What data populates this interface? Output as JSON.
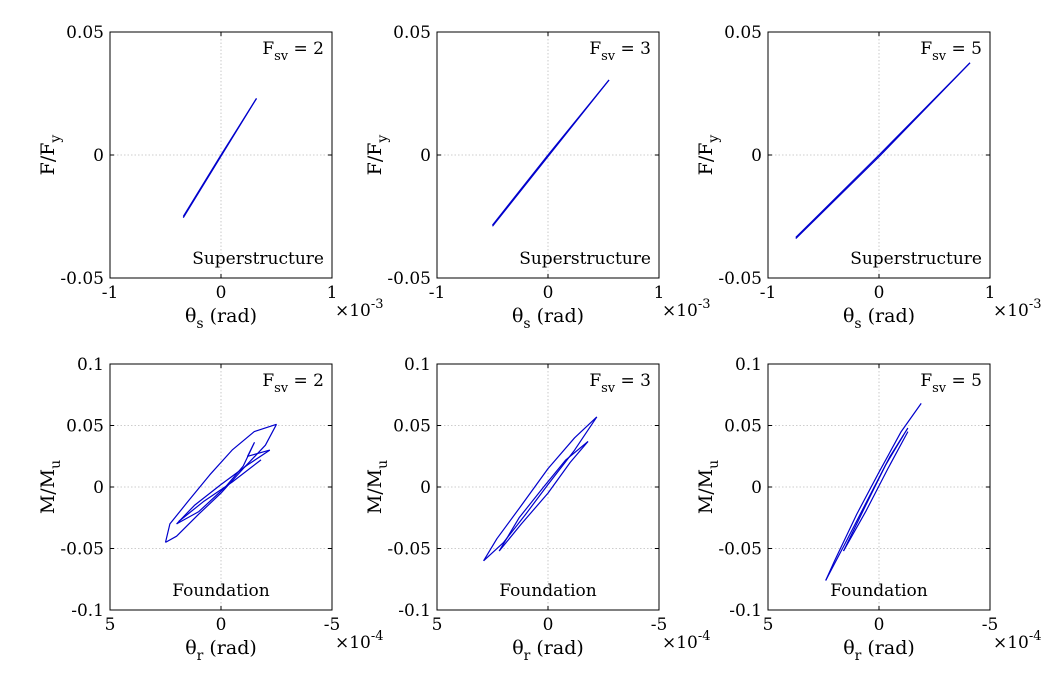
{
  "chart_data": [
    {
      "type": "line",
      "panel": "top-left",
      "xlabel": {
        "sym": "θ",
        "sub": "s",
        "unit": " (rad)"
      },
      "ylabel": {
        "main": "F/F",
        "sub": "y"
      },
      "xlim": [
        -1,
        1
      ],
      "ylim": [
        -0.05,
        0.05
      ],
      "xticks": [
        "-1",
        "0",
        "1"
      ],
      "yticks": [
        "-0.05",
        "0",
        "0.05"
      ],
      "x_multiplier": {
        "base": "×10",
        "exp": "-3"
      },
      "fsv": {
        "label": "F",
        "sub": "sv",
        "value": " = 2"
      },
      "annotation": "Superstructure",
      "grid": true,
      "series": [
        {
          "color": "#0000cc",
          "loops": [
            {
              "x": [
                -0.34,
                0.0,
                0.32
              ],
              "y": [
                -0.025,
                0.0,
                0.023
              ]
            },
            {
              "x": [
                0.32,
                0.0,
                -0.34
              ],
              "y": [
                0.023,
                -0.0005,
                -0.0255
              ]
            }
          ]
        }
      ]
    },
    {
      "type": "line",
      "panel": "top-middle",
      "xlabel": {
        "sym": "θ",
        "sub": "s",
        "unit": " (rad)"
      },
      "ylabel": {
        "main": "F/F",
        "sub": "y"
      },
      "xlim": [
        -1,
        1
      ],
      "ylim": [
        -0.05,
        0.05
      ],
      "xticks": [
        "-1",
        "0",
        "1"
      ],
      "yticks": [
        "-0.05",
        "0",
        "0.05"
      ],
      "x_multiplier": {
        "base": "×10",
        "exp": "-3"
      },
      "fsv": {
        "label": "F",
        "sub": "sv",
        "value": " = 3"
      },
      "annotation": "Superstructure",
      "grid": true,
      "series": [
        {
          "color": "#0000cc",
          "loops": [
            {
              "x": [
                -0.5,
                0.0,
                0.55
              ],
              "y": [
                -0.0285,
                0.0,
                0.0305
              ]
            },
            {
              "x": [
                0.55,
                0.0,
                -0.5
              ],
              "y": [
                0.0305,
                -0.0006,
                -0.029
              ]
            }
          ]
        }
      ]
    },
    {
      "type": "line",
      "panel": "top-right",
      "xlabel": {
        "sym": "θ",
        "sub": "s",
        "unit": " (rad)"
      },
      "ylabel": {
        "main": "F/F",
        "sub": "y"
      },
      "xlim": [
        -1,
        1
      ],
      "ylim": [
        -0.05,
        0.05
      ],
      "xticks": [
        "-1",
        "0",
        "1"
      ],
      "yticks": [
        "-0.05",
        "0",
        "0.05"
      ],
      "x_multiplier": {
        "base": "×10",
        "exp": "-3"
      },
      "fsv": {
        "label": "F",
        "sub": "sv",
        "value": " = 5"
      },
      "annotation": "Superstructure",
      "grid": true,
      "series": [
        {
          "color": "#0000cc",
          "loops": [
            {
              "x": [
                -0.75,
                0.0,
                0.82
              ],
              "y": [
                -0.0335,
                0.0,
                0.0375
              ]
            },
            {
              "x": [
                0.82,
                0.0,
                -0.75
              ],
              "y": [
                0.0375,
                -0.0007,
                -0.034
              ]
            }
          ]
        }
      ]
    },
    {
      "type": "line",
      "panel": "bottom-left",
      "xlabel": {
        "sym": "θ",
        "sub": "r",
        "unit": " (rad)"
      },
      "ylabel": {
        "main": "M/M",
        "sub": "u"
      },
      "xlim": [
        5,
        -5
      ],
      "ylim": [
        -0.1,
        0.1
      ],
      "xticks": [
        "5",
        "0",
        "-5"
      ],
      "yticks": [
        "-0.1",
        "-0.05",
        "0",
        "0.05",
        "0.1"
      ],
      "x_multiplier": {
        "base": "×10",
        "exp": "-4"
      },
      "fsv": {
        "label": "F",
        "sub": "sv",
        "value": " = 2"
      },
      "annotation": "Foundation",
      "grid": true,
      "series": [
        {
          "color": "#0000cc",
          "loops": [
            {
              "x": [
                -2.5,
                -1.5,
                -0.5,
                0.5,
                1.5,
                2.3,
                2.5
              ],
              "y": [
                0.051,
                0.045,
                0.03,
                0.01,
                -0.012,
                -0.03,
                -0.045
              ]
            },
            {
              "x": [
                2.5,
                2.0,
                1.0,
                0.0,
                -1.0,
                -2.0,
                -2.5
              ],
              "y": [
                -0.045,
                -0.04,
                -0.022,
                -0.005,
                0.015,
                0.034,
                0.051
              ]
            },
            {
              "x": [
                -2.2,
                -1.2,
                0.0,
                1.2,
                2.0
              ],
              "y": [
                0.03,
                0.018,
                0.002,
                -0.015,
                -0.03
              ]
            },
            {
              "x": [
                2.0,
                1.0,
                -0.2,
                -1.0,
                -1.5,
                -1.2,
                -2.2
              ],
              "y": [
                -0.03,
                -0.02,
                0.0,
                0.017,
                0.036,
                0.025,
                0.03
              ]
            },
            {
              "x": [
                1.9,
                0.8,
                -0.5,
                -1.8
              ],
              "y": [
                -0.028,
                -0.012,
                0.004,
                0.022
              ]
            }
          ]
        }
      ]
    },
    {
      "type": "line",
      "panel": "bottom-middle",
      "xlabel": {
        "sym": "θ",
        "sub": "r",
        "unit": " (rad)"
      },
      "ylabel": {
        "main": "M/M",
        "sub": "u"
      },
      "xlim": [
        5,
        -5
      ],
      "ylim": [
        -0.1,
        0.1
      ],
      "xticks": [
        "5",
        "0",
        "-5"
      ],
      "yticks": [
        "-0.1",
        "-0.05",
        "0",
        "0.05",
        "0.1"
      ],
      "x_multiplier": {
        "base": "×10",
        "exp": "-4"
      },
      "fsv": {
        "label": "F",
        "sub": "sv",
        "value": " = 3"
      },
      "annotation": "Foundation",
      "grid": true,
      "series": [
        {
          "color": "#0000cc",
          "loops": [
            {
              "x": [
                -2.2,
                -1.2,
                0.0,
                1.2,
                2.3,
                2.9
              ],
              "y": [
                0.057,
                0.04,
                0.015,
                -0.015,
                -0.042,
                -0.06
              ]
            },
            {
              "x": [
                2.9,
                2.0,
                1.0,
                0.0,
                -1.2,
                -2.2
              ],
              "y": [
                -0.06,
                -0.045,
                -0.022,
                0.002,
                0.03,
                0.057
              ]
            },
            {
              "x": [
                -1.8,
                -0.8,
                0.2,
                1.3,
                2.2
              ],
              "y": [
                0.037,
                0.022,
                0.0,
                -0.025,
                -0.052
              ]
            },
            {
              "x": [
                2.2,
                1.2,
                0.0,
                -1.0,
                -1.8
              ],
              "y": [
                -0.052,
                -0.03,
                -0.005,
                0.02,
                0.037
              ]
            }
          ]
        }
      ]
    },
    {
      "type": "line",
      "panel": "bottom-right",
      "xlabel": {
        "sym": "θ",
        "sub": "r",
        "unit": " (rad)"
      },
      "ylabel": {
        "main": "M/M",
        "sub": "u"
      },
      "xlim": [
        5,
        -5
      ],
      "ylim": [
        -0.1,
        0.1
      ],
      "xticks": [
        "5",
        "0",
        "-5"
      ],
      "yticks": [
        "-0.1",
        "-0.05",
        "0",
        "0.05",
        "0.1"
      ],
      "x_multiplier": {
        "base": "×10",
        "exp": "-4"
      },
      "fsv": {
        "label": "F",
        "sub": "sv",
        "value": " = 5"
      },
      "annotation": "Foundation",
      "grid": true,
      "series": [
        {
          "color": "#0000cc",
          "loops": [
            {
              "x": [
                -1.9,
                -1.0,
                0.0,
                1.0,
                2.0,
                2.4
              ],
              "y": [
                0.068,
                0.045,
                0.012,
                -0.022,
                -0.06,
                -0.076
              ]
            },
            {
              "x": [
                2.4,
                1.5,
                0.5,
                -0.5,
                -1.3
              ],
              "y": [
                -0.076,
                -0.045,
                -0.01,
                0.025,
                0.048
              ]
            },
            {
              "x": [
                -1.3,
                -0.4,
                0.6,
                1.6
              ],
              "y": [
                0.045,
                0.015,
                -0.02,
                -0.052
              ]
            },
            {
              "x": [
                1.6,
                0.6,
                -0.3,
                -1.1
              ],
              "y": [
                -0.052,
                -0.015,
                0.018,
                0.042
              ]
            }
          ]
        }
      ]
    }
  ]
}
